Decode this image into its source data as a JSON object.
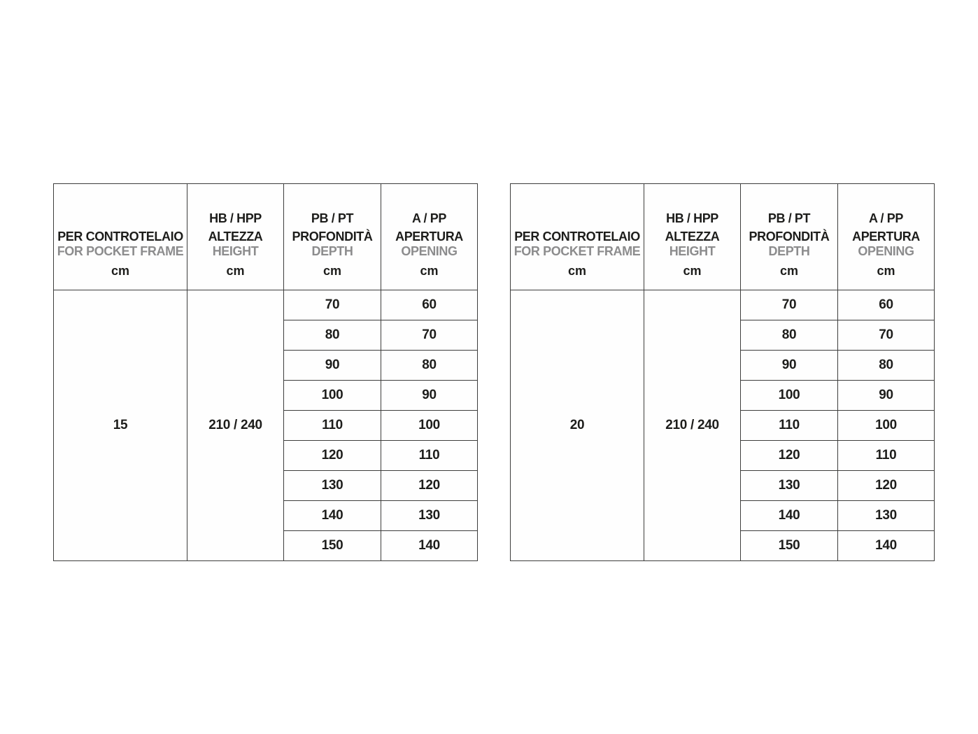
{
  "colors": {
    "background": "#ffffff",
    "text_primary": "#1d1d1b",
    "text_secondary": "#8c8c8d",
    "border": "#3d3d3c"
  },
  "tables": [
    {
      "id": "pocket-frame-15",
      "columns": [
        {
          "it": "PER CONTROTELAIO",
          "en": "FOR POCKET FRAME",
          "unit": "cm"
        },
        {
          "code": "HB / HPP",
          "it": "ALTEZZA",
          "en": "HEIGHT",
          "unit": "cm"
        },
        {
          "code": "PB / PT",
          "it": "PROFONDITÀ",
          "en": "DEPTH",
          "unit": "cm"
        },
        {
          "code": "A / PP",
          "it": "APERTURA",
          "en": "OPENING",
          "unit": "cm"
        }
      ],
      "pocket_frame": "15",
      "height_value": "210 / 240",
      "rows": [
        {
          "depth": "70",
          "opening": "60"
        },
        {
          "depth": "80",
          "opening": "70"
        },
        {
          "depth": "90",
          "opening": "80"
        },
        {
          "depth": "100",
          "opening": "90"
        },
        {
          "depth": "110",
          "opening": "100"
        },
        {
          "depth": "120",
          "opening": "110"
        },
        {
          "depth": "130",
          "opening": "120"
        },
        {
          "depth": "140",
          "opening": "130"
        },
        {
          "depth": "150",
          "opening": "140"
        }
      ]
    },
    {
      "id": "pocket-frame-20",
      "columns": [
        {
          "it": "PER CONTROTELAIO",
          "en": "FOR POCKET FRAME",
          "unit": "cm"
        },
        {
          "code": "HB / HPP",
          "it": "ALTEZZA",
          "en": "HEIGHT",
          "unit": "cm"
        },
        {
          "code": "PB / PT",
          "it": "PROFONDITÀ",
          "en": "DEPTH",
          "unit": "cm"
        },
        {
          "code": "A / PP",
          "it": "APERTURA",
          "en": "OPENING",
          "unit": "cm"
        }
      ],
      "pocket_frame": "20",
      "height_value": "210 / 240",
      "rows": [
        {
          "depth": "70",
          "opening": "60"
        },
        {
          "depth": "80",
          "opening": "70"
        },
        {
          "depth": "90",
          "opening": "80"
        },
        {
          "depth": "100",
          "opening": "90"
        },
        {
          "depth": "110",
          "opening": "100"
        },
        {
          "depth": "120",
          "opening": "110"
        },
        {
          "depth": "130",
          "opening": "120"
        },
        {
          "depth": "140",
          "opening": "130"
        },
        {
          "depth": "150",
          "opening": "140"
        }
      ]
    }
  ]
}
